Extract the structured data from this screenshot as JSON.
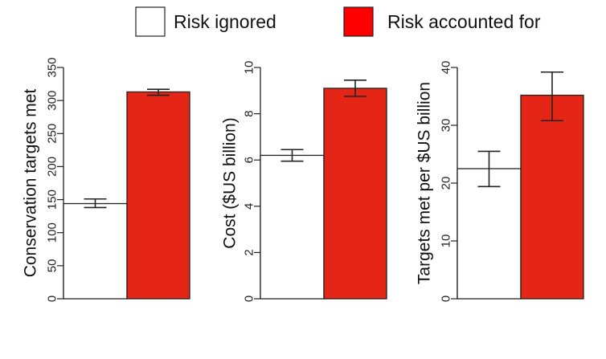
{
  "legend": [
    {
      "label": "Risk ignored",
      "color": "#ffffff"
    },
    {
      "label": "Risk accounted for",
      "color": "#ff0000"
    }
  ],
  "chart_data": [
    {
      "type": "bar",
      "ylabel": "Conservation targets met",
      "ylim": [
        0,
        350
      ],
      "yticks": [
        0,
        50,
        100,
        150,
        200,
        250,
        300,
        350
      ],
      "series": [
        {
          "name": "Risk ignored",
          "value": 144,
          "err_low": 138,
          "err_high": 151,
          "color": "#ffffff"
        },
        {
          "name": "Risk accounted for",
          "value": 313,
          "err_low": 308,
          "err_high": 317,
          "color": "#e52617"
        }
      ]
    },
    {
      "type": "bar",
      "ylabel": "Cost ($US billion)",
      "ylim": [
        0,
        10
      ],
      "yticks": [
        0,
        2,
        4,
        6,
        8,
        10
      ],
      "series": [
        {
          "name": "Risk ignored",
          "value": 6.2,
          "err_low": 5.95,
          "err_high": 6.45,
          "color": "#ffffff"
        },
        {
          "name": "Risk accounted for",
          "value": 9.1,
          "err_low": 8.75,
          "err_high": 9.45,
          "color": "#e52617"
        }
      ]
    },
    {
      "type": "bar",
      "ylabel": "Targets met per $US billion",
      "ylim": [
        0,
        40
      ],
      "yticks": [
        0,
        10,
        20,
        30,
        40
      ],
      "series": [
        {
          "name": "Risk ignored",
          "value": 22.5,
          "err_low": 19.4,
          "err_high": 25.5,
          "color": "#ffffff"
        },
        {
          "name": "Risk accounted for",
          "value": 35.2,
          "err_low": 30.8,
          "err_high": 39.2,
          "color": "#e52617"
        }
      ]
    }
  ]
}
